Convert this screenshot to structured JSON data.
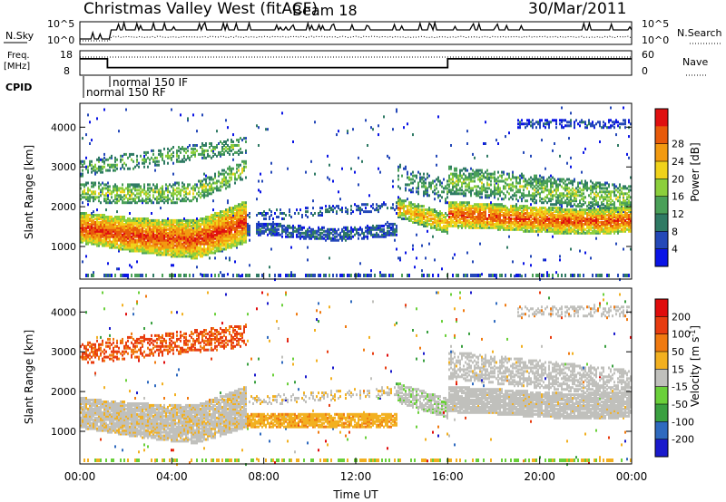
{
  "header": {
    "title": "Christmas Valley West (fitACF)",
    "beam": "Beam 18",
    "date": "30/Mar/2011"
  },
  "chart_data": [
    {
      "type": "line",
      "panel": "noise",
      "left_label": "N.Sky",
      "right_label": "N.Search",
      "left_ticks": [
        "10^5",
        "10^0"
      ],
      "right_ticks": [
        "10^5",
        "10^0"
      ],
      "series": [
        {
          "name": "N.Sky",
          "style": "solid"
        },
        {
          "name": "N.Search",
          "style": "dotted"
        }
      ]
    },
    {
      "type": "line",
      "panel": "frequency",
      "left_label": "Freq.\n[MHz]",
      "right_label": "Nave",
      "left_ticks": [
        "18",
        "8"
      ],
      "right_ticks": [
        "60",
        "0"
      ],
      "series": [
        {
          "name": "Freq.",
          "style": "solid",
          "x_hours": [
            0,
            1.2,
            1.2,
            16,
            16,
            24
          ],
          "y_mhz": [
            15,
            15,
            10.8,
            10.8,
            15,
            15
          ]
        },
        {
          "name": "Nave",
          "style": "dotted"
        }
      ]
    },
    {
      "type": "table",
      "panel": "cpid",
      "label": "CPID",
      "entries": [
        "normal 150 IF",
        "normal 150 RF"
      ]
    },
    {
      "type": "heatmap",
      "panel": "power",
      "ylabel": "Slant Range [km]",
      "yticks": [
        1000,
        2000,
        3000,
        4000
      ],
      "ylim": [
        180,
        4600
      ],
      "xlim": [
        0,
        24
      ],
      "colorbar": {
        "label": "Power [dB]",
        "ticks": [
          "4",
          "8",
          "12",
          "16",
          "20",
          "24",
          "28"
        ],
        "colors": [
          "#0a14e6",
          "#2448b8",
          "#2f7a64",
          "#4aa058",
          "#8ccf3c",
          "#f0d21a",
          "#f29a10",
          "#e85a0a",
          "#e01010"
        ]
      }
    },
    {
      "type": "heatmap",
      "panel": "velocity",
      "ylabel": "Slant Range [km]",
      "yticks": [
        1000,
        2000,
        3000,
        4000
      ],
      "ylim": [
        180,
        4600
      ],
      "xlim": [
        0,
        24
      ],
      "xlabel": "Time UT",
      "xticks": [
        "00:00",
        "04:00",
        "08:00",
        "12:00",
        "16:00",
        "20:00",
        "00:00"
      ],
      "colorbar": {
        "label": "Velocity [m s-1]",
        "ticks": [
          "200",
          "100",
          "50",
          "15",
          "-15",
          "-50",
          "-100",
          "-200"
        ],
        "colors": [
          "#1a1acc",
          "#2f6abf",
          "#3aa040",
          "#6ad03a",
          "#c0c0bc",
          "#f2b020",
          "#f07a10",
          "#e83c10",
          "#e00c0c"
        ]
      }
    }
  ]
}
